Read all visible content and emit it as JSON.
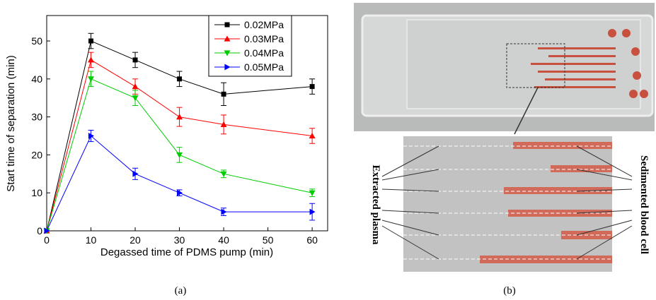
{
  "chart_data": {
    "type": "line",
    "x_label": "Degassed time of PDMS pump (min)",
    "y_label": "Start time of separation (min)",
    "x": [
      0,
      10,
      20,
      30,
      40,
      60
    ],
    "xlim": [
      0,
      63.5
    ],
    "ylim": [
      0,
      56.7
    ],
    "xticks": [
      0,
      10,
      20,
      30,
      40,
      50,
      60
    ],
    "yticks": [
      0,
      10,
      20,
      30,
      40,
      50
    ],
    "legend": "top-right",
    "series": [
      {
        "name": "0.02MPa",
        "color": "#000000",
        "marker": "square",
        "values": [
          0,
          50,
          45,
          40,
          36,
          38
        ],
        "errors": [
          0,
          2,
          2,
          2,
          3,
          2
        ]
      },
      {
        "name": "0.03MPa",
        "color": "#ff0000",
        "marker": "triangle-up",
        "values": [
          0,
          45,
          38,
          30,
          28,
          25
        ],
        "errors": [
          0,
          2,
          2,
          2.5,
          2.5,
          2
        ]
      },
      {
        "name": "0.04MPa",
        "color": "#00cc00",
        "marker": "triangle-down",
        "values": [
          0,
          40,
          35,
          20,
          15,
          10
        ],
        "errors": [
          0,
          2,
          2,
          2,
          1,
          1
        ]
      },
      {
        "name": "0.05MPa",
        "color": "#0000ff",
        "marker": "triangle-right",
        "values": [
          0,
          25,
          15,
          10,
          5,
          5
        ],
        "errors": [
          0,
          1.5,
          1.5,
          0.8,
          1,
          2.2
        ]
      }
    ]
  },
  "panels": [
    "(a)",
    "(b)"
  ],
  "photo": {
    "left_label": "Extracted plasma",
    "right_label": "Sedimented blood cell"
  }
}
